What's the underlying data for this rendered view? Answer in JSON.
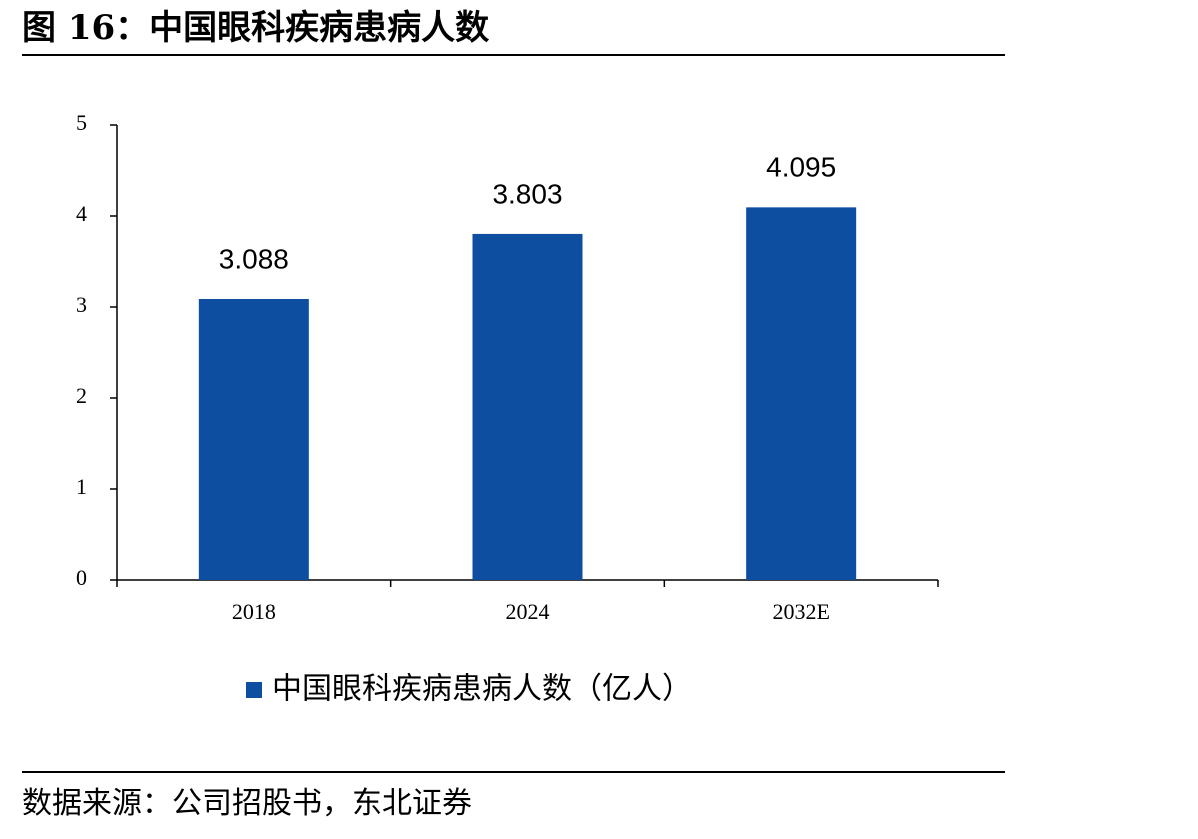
{
  "chart_data": {
    "type": "bar",
    "title": "图 16：中国眼科疾病患病人数",
    "categories": [
      "2018",
      "2024",
      "2032E"
    ],
    "series": [
      {
        "name": "中国眼科疾病患病人数（亿人）",
        "color": "#0d4ea1",
        "values": [
          3.088,
          3.803,
          4.095
        ]
      }
    ],
    "ylim": [
      0,
      5
    ],
    "yticks": [
      0,
      1,
      2,
      3,
      4,
      5
    ],
    "grid": false,
    "legend": "bottom",
    "source": "数据来源：公司招股书，东北证券"
  }
}
